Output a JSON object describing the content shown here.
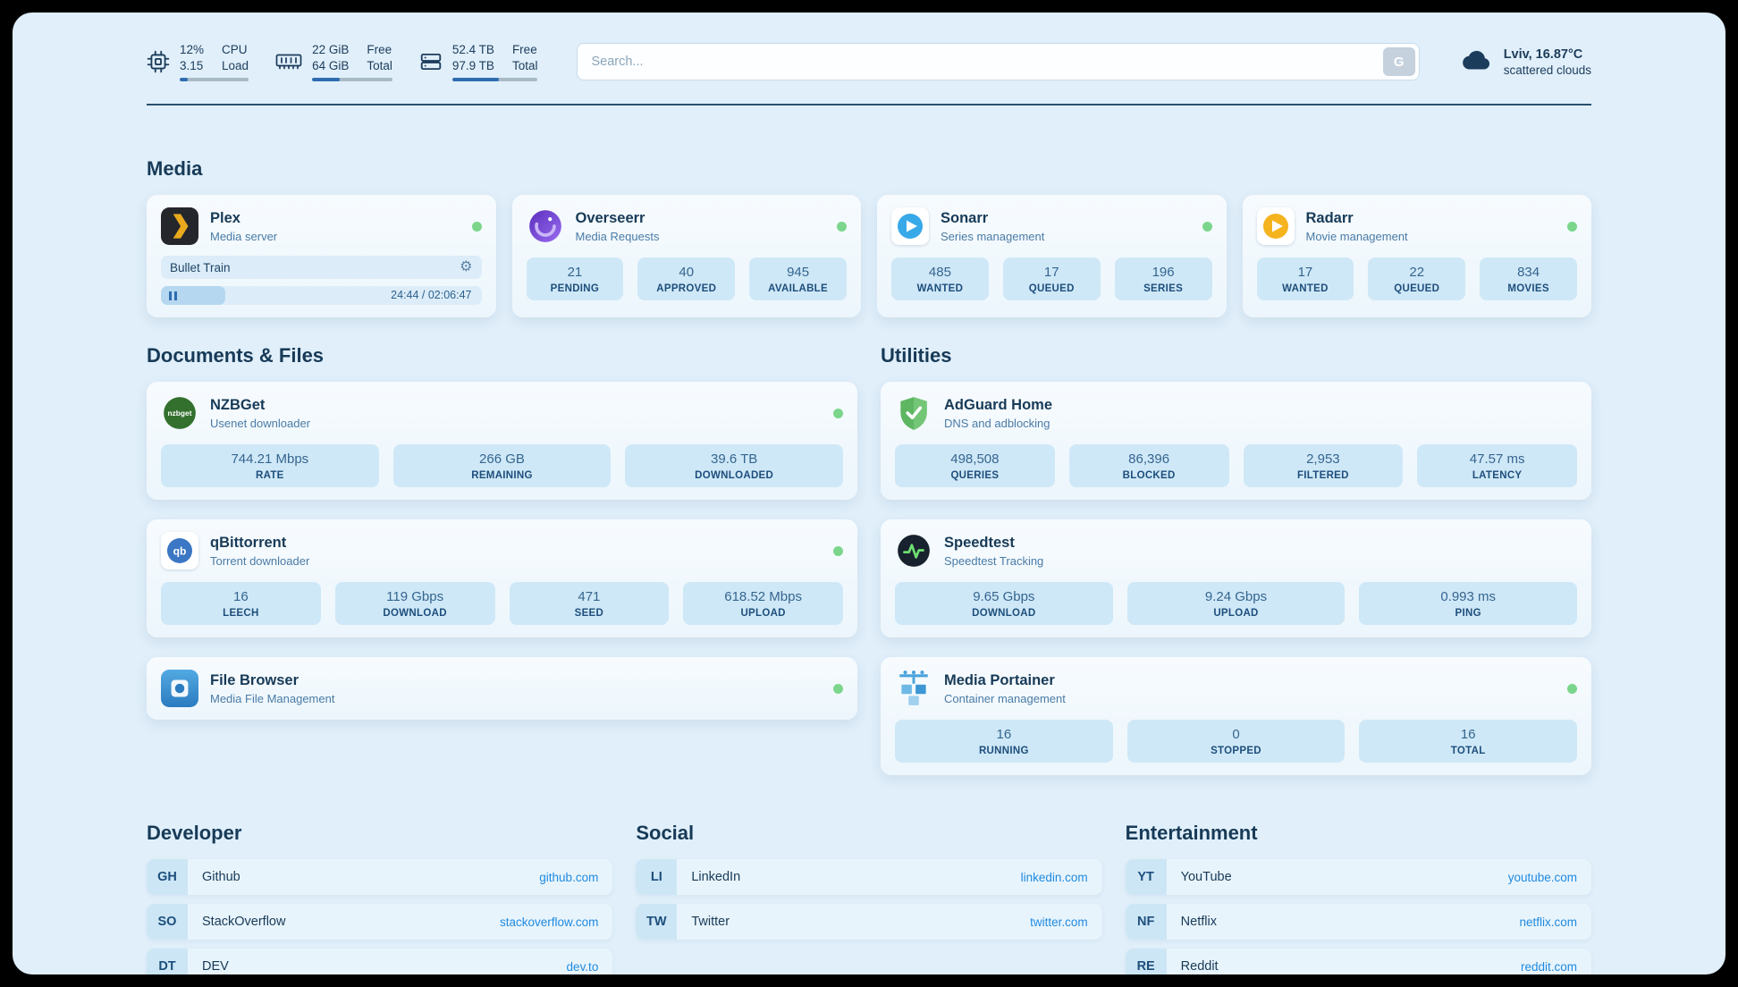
{
  "topbar": {
    "cpu": {
      "value_top": "12%",
      "value_bottom": "3.15",
      "label_top": "CPU",
      "label_bottom": "Load",
      "percent": 12
    },
    "ram": {
      "value_top": "22 GiB",
      "value_bottom": "64 GiB",
      "label_top": "Free",
      "label_bottom": "Total",
      "percent": 34
    },
    "disk": {
      "value_top": "52.4 TB",
      "value_bottom": "97.9 TB",
      "label_top": "Free",
      "label_bottom": "Total",
      "percent": 54
    },
    "search": {
      "placeholder": "Search...",
      "button_label": "G"
    },
    "weather": {
      "location": "Lviv, 16.87°C",
      "condition": "scattered clouds"
    }
  },
  "icons": {
    "gear": "⚙"
  },
  "colors": {
    "status_online": "#7bd68c",
    "link": "#1f8ae0",
    "bar_fill": "#2e6cb0"
  },
  "sections": {
    "media": {
      "title": "Media",
      "plex": {
        "title": "Plex",
        "subtitle": "Media server",
        "now_playing": "Bullet Train",
        "time": "24:44 / 02:06:47",
        "progress_percent": 20
      },
      "overseerr": {
        "title": "Overseerr",
        "subtitle": "Media Requests",
        "stats": [
          {
            "value": "21",
            "label": "PENDING"
          },
          {
            "value": "40",
            "label": "APPROVED"
          },
          {
            "value": "945",
            "label": "AVAILABLE"
          }
        ]
      },
      "sonarr": {
        "title": "Sonarr",
        "subtitle": "Series management",
        "stats": [
          {
            "value": "485",
            "label": "WANTED"
          },
          {
            "value": "17",
            "label": "QUEUED"
          },
          {
            "value": "196",
            "label": "SERIES"
          }
        ]
      },
      "radarr": {
        "title": "Radarr",
        "subtitle": "Movie management",
        "stats": [
          {
            "value": "17",
            "label": "WANTED"
          },
          {
            "value": "22",
            "label": "QUEUED"
          },
          {
            "value": "834",
            "label": "MOVIES"
          }
        ]
      }
    },
    "documents": {
      "title": "Documents & Files",
      "nzbget": {
        "title": "NZBGet",
        "subtitle": "Usenet downloader",
        "stats": [
          {
            "value": "744.21 Mbps",
            "label": "RATE"
          },
          {
            "value": "266 GB",
            "label": "REMAINING"
          },
          {
            "value": "39.6 TB",
            "label": "DOWNLOADED"
          }
        ]
      },
      "qbittorrent": {
        "title": "qBittorrent",
        "subtitle": "Torrent downloader",
        "stats": [
          {
            "value": "16",
            "label": "LEECH"
          },
          {
            "value": "119 Gbps",
            "label": "DOWNLOAD"
          },
          {
            "value": "471",
            "label": "SEED"
          },
          {
            "value": "618.52 Mbps",
            "label": "UPLOAD"
          }
        ]
      },
      "filebrowser": {
        "title": "File Browser",
        "subtitle": "Media File Management"
      }
    },
    "utilities": {
      "title": "Utilities",
      "adguard": {
        "title": "AdGuard Home",
        "subtitle": "DNS and adblocking",
        "stats": [
          {
            "value": "498,508",
            "label": "QUERIES"
          },
          {
            "value": "86,396",
            "label": "BLOCKED"
          },
          {
            "value": "2,953",
            "label": "FILTERED"
          },
          {
            "value": "47.57 ms",
            "label": "LATENCY"
          }
        ]
      },
      "speedtest": {
        "title": "Speedtest",
        "subtitle": "Speedtest Tracking",
        "stats": [
          {
            "value": "9.65 Gbps",
            "label": "DOWNLOAD"
          },
          {
            "value": "9.24 Gbps",
            "label": "UPLOAD"
          },
          {
            "value": "0.993 ms",
            "label": "PING"
          }
        ]
      },
      "portainer": {
        "title": "Media Portainer",
        "subtitle": "Container management",
        "stats": [
          {
            "value": "16",
            "label": "RUNNING"
          },
          {
            "value": "0",
            "label": "STOPPED"
          },
          {
            "value": "16",
            "label": "TOTAL"
          }
        ]
      }
    },
    "developer": {
      "title": "Developer",
      "links": [
        {
          "abbr": "GH",
          "name": "Github",
          "url": "github.com"
        },
        {
          "abbr": "SO",
          "name": "StackOverflow",
          "url": "stackoverflow.com"
        },
        {
          "abbr": "DT",
          "name": "DEV",
          "url": "dev.to"
        }
      ]
    },
    "social": {
      "title": "Social",
      "links": [
        {
          "abbr": "LI",
          "name": "LinkedIn",
          "url": "linkedin.com"
        },
        {
          "abbr": "TW",
          "name": "Twitter",
          "url": "twitter.com"
        }
      ]
    },
    "entertainment": {
      "title": "Entertainment",
      "links": [
        {
          "abbr": "YT",
          "name": "YouTube",
          "url": "youtube.com"
        },
        {
          "abbr": "NF",
          "name": "Netflix",
          "url": "netflix.com"
        },
        {
          "abbr": "RE",
          "name": "Reddit",
          "url": "reddit.com"
        }
      ]
    }
  }
}
